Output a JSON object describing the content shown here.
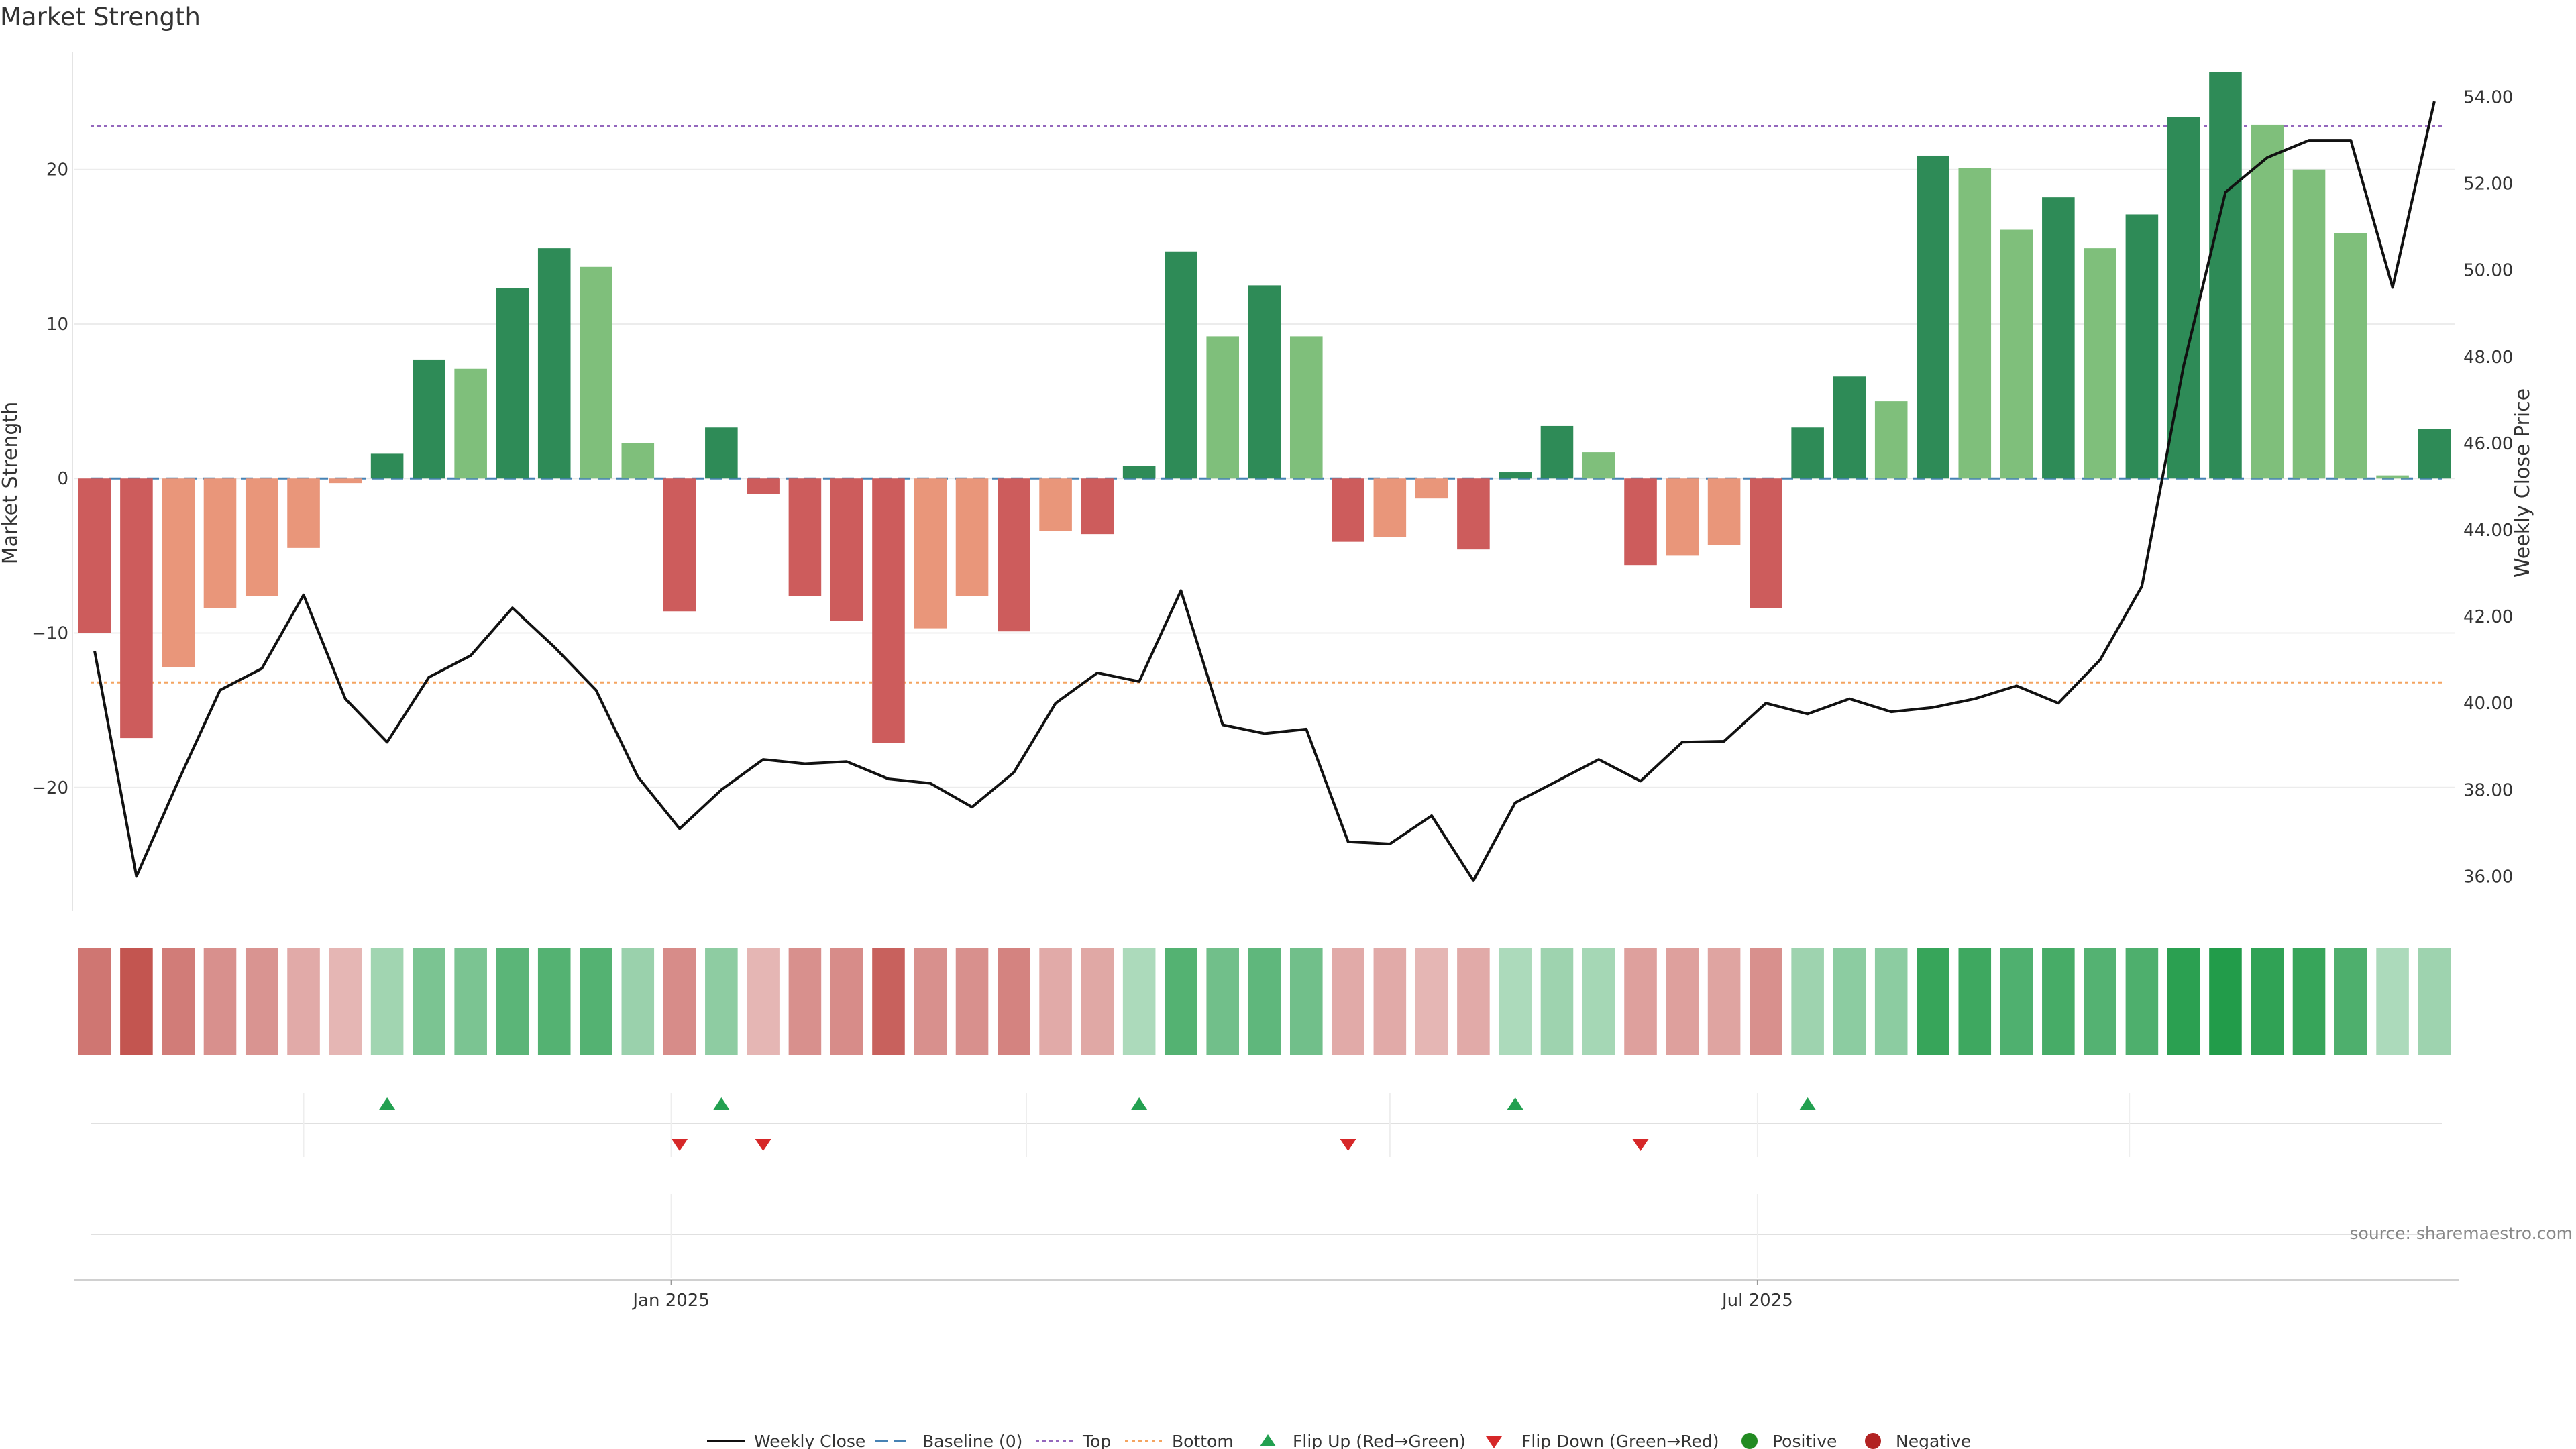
{
  "title": "Market Strength",
  "source": "source: sharemaestro.com",
  "chart_data": {
    "type": "bar",
    "title": "Market Strength",
    "ylabel": "Market Strength",
    "y2label": "Weekly Close Price",
    "ylim": [
      -28,
      27.5
    ],
    "y2lim": [
      35.2,
      55
    ],
    "yticks": [
      -20,
      -10,
      0,
      10,
      20
    ],
    "ytick_labels": [
      "−20",
      "−10",
      "0",
      "10",
      "20"
    ],
    "y2ticks": [
      36,
      38,
      40,
      42,
      44,
      46,
      48,
      50,
      52,
      54
    ],
    "y2tick_labels": [
      "36.00",
      "38.00",
      "40.00",
      "42.00",
      "44.00",
      "46.00",
      "48.00",
      "50.00",
      "52.00",
      "54.00"
    ],
    "x_ticks": [
      {
        "week": 13.8,
        "label": "Jan 2025"
      },
      {
        "week": 39.8,
        "label": "Jul 2025"
      }
    ],
    "top_line": 22.8,
    "bottom_line": -13.2,
    "baseline": 0,
    "values": [
      -10,
      -16.8,
      -12.2,
      -8.4,
      -7.6,
      -4.5,
      -0.3,
      1.6,
      7.7,
      7.1,
      12.3,
      14.9,
      13.7,
      2.3,
      -8.6,
      3.3,
      -1.0,
      -7.6,
      -9.2,
      -17.1,
      -9.7,
      -7.6,
      -9.9,
      -3.4,
      -3.6,
      0.8,
      14.7,
      9.2,
      12.5,
      9.2,
      -4.1,
      -3.8,
      -1.3,
      -4.6,
      0.4,
      3.4,
      1.7,
      -5.6,
      -5.0,
      -4.3,
      -8.4,
      3.3,
      6.6,
      5.0,
      20.9,
      20.1,
      16.1,
      18.2,
      14.9,
      17.1,
      23.4,
      26.3,
      22.9,
      20.0,
      15.9,
      0.2,
      3.2
    ],
    "series": [
      {
        "name": "Market Strength",
        "values": [
          -10,
          -16.8,
          -12.2,
          -8.4,
          -7.6,
          -4.5,
          -0.3,
          1.6,
          7.7,
          7.1,
          12.3,
          14.9,
          13.7,
          2.3,
          -8.6,
          3.3,
          -1.0,
          -7.6,
          -9.2,
          -17.1,
          -9.7,
          -7.6,
          -9.9,
          -3.4,
          -3.6,
          0.8,
          14.7,
          9.2,
          12.5,
          9.2,
          -4.1,
          -3.8,
          -1.3,
          -4.6,
          0.4,
          3.4,
          1.7,
          -5.6,
          -5.0,
          -4.3,
          -8.4,
          3.3,
          6.6,
          5.0,
          20.9,
          20.1,
          16.1,
          18.2,
          14.9,
          17.1,
          23.4,
          26.3,
          22.9,
          20.0,
          15.9,
          0.2,
          3.2
        ]
      },
      {
        "name": "Weekly Close",
        "values": [
          41.2,
          36.0,
          38.2,
          40.3,
          40.8,
          42.5,
          40.1,
          39.1,
          40.6,
          41.1,
          42.2,
          41.3,
          40.3,
          38.3,
          37.1,
          38.0,
          38.7,
          38.6,
          38.65,
          38.25,
          38.15,
          37.6,
          38.4,
          40.0,
          40.7,
          40.5,
          42.6,
          39.5,
          39.3,
          39.4,
          36.8,
          36.75,
          37.4,
          35.9,
          37.7,
          38.2,
          38.7,
          38.2,
          39.1,
          39.12,
          40.0,
          39.75,
          40.1,
          39.8,
          39.9,
          40.1,
          40.4,
          40.0,
          41.0,
          42.7,
          47.8,
          51.8,
          52.6,
          53.0,
          53.0,
          49.6,
          53.9
        ]
      }
    ],
    "strength_band_intensity": [
      0.62,
      0.82,
      0.58,
      0.45,
      0.42,
      0.28,
      0.2,
      0.28,
      0.5,
      0.5,
      0.68,
      0.72,
      0.72,
      0.32,
      0.48,
      0.38,
      0.2,
      0.45,
      0.48,
      0.75,
      0.45,
      0.45,
      0.52,
      0.28,
      0.3,
      0.22,
      0.72,
      0.55,
      0.65,
      0.55,
      0.28,
      0.28,
      0.2,
      0.28,
      0.22,
      0.3,
      0.25,
      0.35,
      0.35,
      0.32,
      0.45,
      0.3,
      0.4,
      0.4,
      0.88,
      0.85,
      0.75,
      0.8,
      0.72,
      0.76,
      0.95,
      1.0,
      0.92,
      0.88,
      0.76,
      0.22,
      0.3
    ],
    "flip_up_weeks": [
      7,
      15,
      25,
      34,
      41
    ],
    "flip_down_weeks": [
      14,
      16,
      30,
      37
    ],
    "legend": [
      "Weekly Close",
      "Baseline (0)",
      "Top",
      "Bottom",
      "Flip Up (Red→Green)",
      "Flip Down (Green→Red)",
      "Positive",
      "Negative"
    ],
    "colors": {
      "strong_pos": "#2e8b57",
      "weak_pos": "#7fbf7b",
      "strong_neg": "#cd5c5c",
      "weak_neg": "#e9967a",
      "close_line": "#111111",
      "baseline": "#4682b4",
      "top": "#9467bd",
      "bottom": "#f4a460",
      "flip_up": "#22a050",
      "flip_down": "#d62728",
      "positive": "#228b22",
      "negative": "#b22222"
    }
  }
}
